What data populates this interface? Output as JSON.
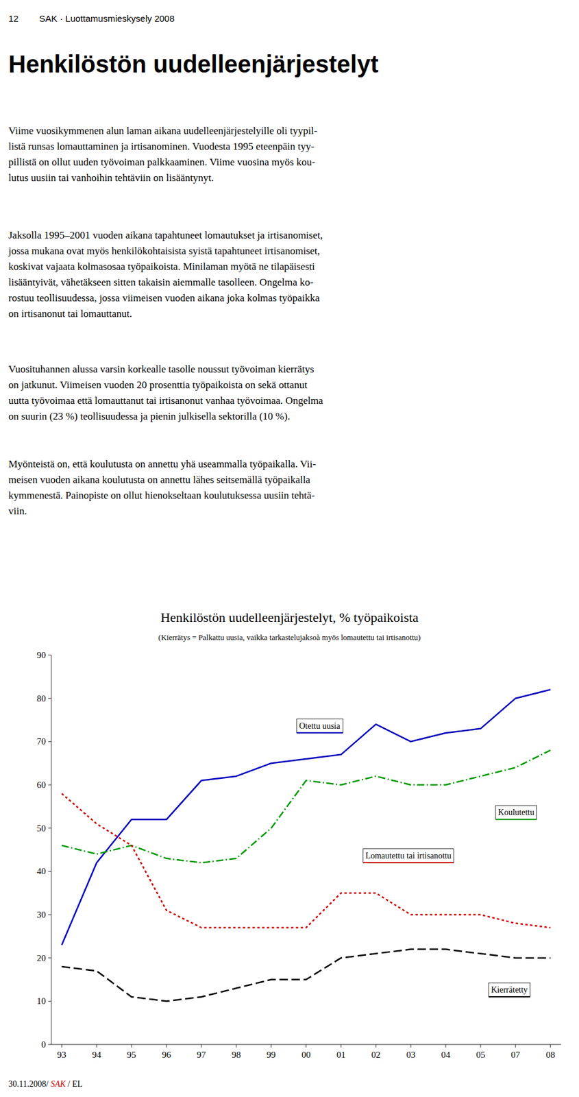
{
  "header_num": "12",
  "header_text": "SAK · Luottamusmieskysely 2008",
  "page_title": "Henkilöstön uudelleenjärjestelyt",
  "paragraphs": [
    [
      "Viime vuosikymmenen alun laman aikana uudelleenjärjestelyille oli tyypil-",
      "listä runsas lomauttaminen ja irtisanominen. Vuodesta 1995 eteenpäin tyy-",
      "pillistä on ollut uuden työvoiman palkkaaminen. Viime vuosina myös kou-",
      "lutus uusiin tai vanhoihin tehtäviin on lisääntynyt."
    ],
    [
      "Jaksolla 1995–2001 vuoden aikana tapahtuneet lomautukset ja irtisanomiset,",
      "jossa mukana ovat myös henkilökohtaisista syistä tapahtuneet irtisanomiset,",
      "koskivat vajaata kolmasosaa työpaikoista. Minilaman myötä ne tilapäisesti",
      "lisääntyivät, vähetäkseen sitten takaisin aiemmalle tasolleen. Ongelma ko-",
      "rostuu teollisuudessa, jossa viimeisen vuoden aikana joka kolmas työpaikka",
      "on irtisanonut tai lomauttanut."
    ],
    [
      "Vuosituhannen alussa varsin korkealle tasolle noussut työvoiman kierrätys",
      "on jatkunut. Viimeisen vuoden 20 prosenttia työpaikoista on sekä ottanut",
      "uutta työvoimaa että lomauttanut tai irtisanonut vanhaa työvoimaa. Ongelma",
      "on suurin (23 %) teollisuudessa ja pienin julkisella sektorilla (10 %)."
    ],
    [
      "Myönteistä on, että koulutusta on annettu yhä useammalla työpaikalla. Vii-",
      "meisen vuoden aikana koulutusta on annettu lähes seitsemällä työpaikalla",
      "kymmenestä. Painopiste on ollut hienokseltaan koulutuksessa uusiin tehtä-",
      "viin."
    ]
  ],
  "footer": [
    {
      "text": "30.11.2008/ "
    },
    {
      "text": "SAK",
      "color": "#cc0000"
    },
    {
      "text": " / EL"
    }
  ],
  "chart_data": {
    "type": "line",
    "title": "Henkilöstön uudelleenjärjestelyt, % työpaikoista",
    "subtitle": "(Kierrätys = Palkattu uusia, vaikka tarkastelujaksoà myös lomautettu tai irtisanottu)",
    "categories": [
      "93",
      "94",
      "95",
      "96",
      "97",
      "98",
      "99",
      "00",
      "01",
      "02",
      "03",
      "04",
      "05",
      "07",
      "08"
    ],
    "series": [
      {
        "name": "Otettu uusia",
        "color": "#0000bb",
        "line_style": "solid",
        "values": [
          23,
          42,
          52,
          52,
          61,
          62,
          65,
          66,
          67,
          74,
          70,
          72,
          73,
          80,
          82
        ]
      },
      {
        "name": "Koulutettu",
        "color": "#009900",
        "line_style": "dashdot",
        "values": [
          46,
          44,
          46,
          43,
          42,
          43,
          50,
          61,
          60,
          62,
          60,
          60,
          62,
          64,
          68
        ]
      },
      {
        "name": "Lomautettu tai irtisanottu",
        "color": "#cc0000",
        "line_style": "dotted",
        "values": [
          58,
          51,
          46,
          31,
          27,
          27,
          27,
          27,
          35,
          35,
          30,
          30,
          30,
          28,
          27
        ]
      },
      {
        "name": "Kierrätetty",
        "color": "#000000",
        "line_style": "dashed",
        "values": [
          18,
          17,
          11,
          10,
          11,
          13,
          15,
          15,
          20,
          21,
          22,
          22,
          21,
          20,
          20
        ]
      }
    ],
    "ylim": [
      0,
      90
    ],
    "yticks": [
      0,
      10,
      20,
      30,
      40,
      50,
      60,
      70,
      80,
      90
    ],
    "grid": false
  }
}
